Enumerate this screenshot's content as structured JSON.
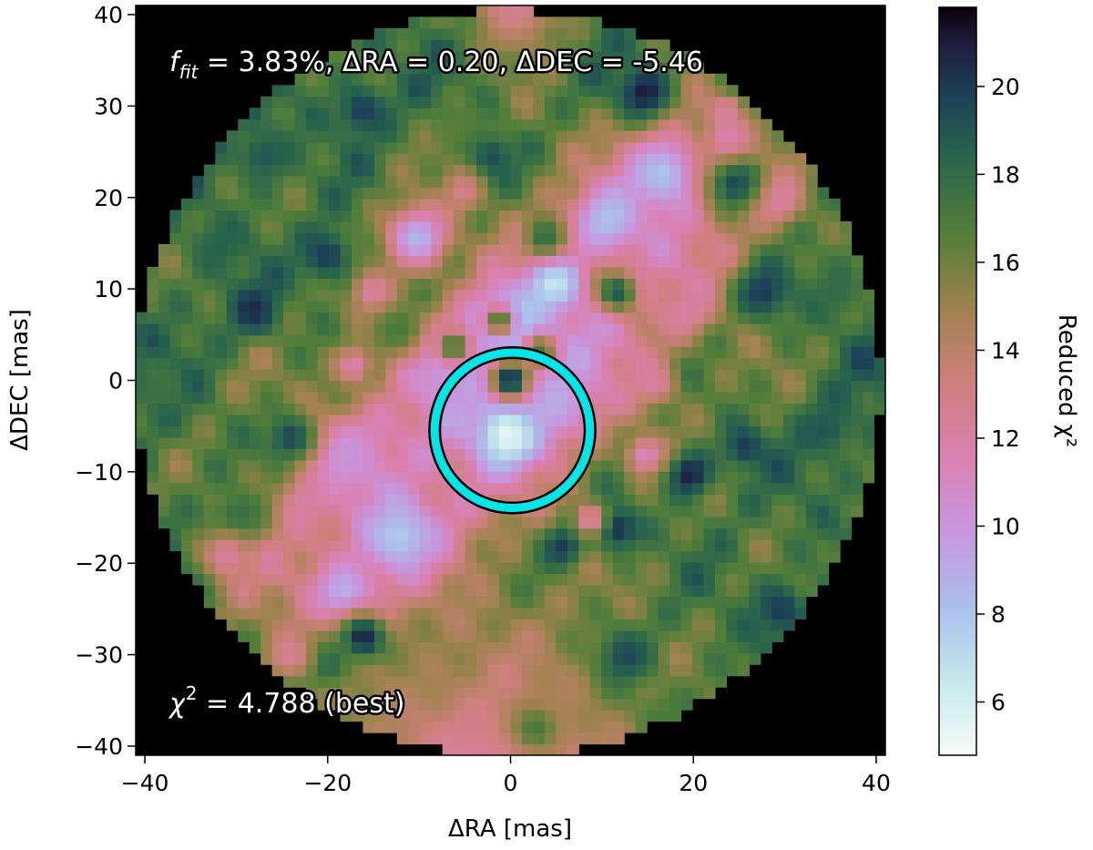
{
  "chart_data": {
    "type": "heatmap",
    "title": "",
    "xlabel": "ΔRA [mas]",
    "ylabel": "ΔDEC [mas]",
    "xlim": [
      -41,
      41
    ],
    "ylim": [
      -41,
      41
    ],
    "x_ticks": [
      -40,
      -20,
      0,
      20,
      40
    ],
    "x_tick_labels": [
      "−40",
      "−20",
      "0",
      "20",
      "40"
    ],
    "y_ticks": [
      -40,
      -30,
      -20,
      -10,
      0,
      10,
      20,
      30,
      40
    ],
    "y_tick_labels": [
      "−40",
      "−30",
      "−20",
      "−10",
      "0",
      "10",
      "20",
      "30",
      "40"
    ],
    "colormap": "cubehelix_r",
    "colorbar": {
      "label": "Reduced χ²",
      "range": [
        4.788,
        21.8
      ],
      "ticks": [
        6,
        8,
        10,
        12,
        14,
        16,
        18,
        20
      ],
      "tick_labels": [
        "6",
        "8",
        "10",
        "12",
        "14",
        "16",
        "18",
        "20"
      ]
    },
    "search_radius_mas": 41,
    "grid_step_mas": 1.25,
    "masked_color": "#000000",
    "best_fit": {
      "f_fit_percent": 3.83,
      "dRA": 0.2,
      "dDEC": -5.46,
      "chi2": 4.788,
      "marker_radius_mas": 8.5,
      "marker_color": "#00e5e8"
    },
    "annotations": {
      "fit_text_fpart": "f",
      "fit_text_sub": "fit",
      "fit_text_rest": " = 3.83%, ΔRA = 0.20, ΔDEC = -5.46",
      "chi_text_chi": "χ",
      "chi_text_sup": "2",
      "chi_text_rest": " = 4.788 (best)"
    },
    "features": [
      {
        "x": 0.2,
        "y": -5.5,
        "value": 4.8,
        "w": 2.5
      },
      {
        "x": -0.5,
        "y": 6.5,
        "value": 6.0,
        "w": 2.5
      },
      {
        "x": 5,
        "y": 11,
        "value": 6.5,
        "w": 2.0
      },
      {
        "x": -12,
        "y": -17,
        "value": 7.5,
        "w": 3.0
      },
      {
        "x": 11,
        "y": 18,
        "value": 8.0,
        "w": 2.5
      },
      {
        "x": 17,
        "y": 23,
        "value": 8.0,
        "w": 3.0
      },
      {
        "x": -10,
        "y": 16,
        "value": 8.5,
        "w": 2.5
      },
      {
        "x": -18,
        "y": -23,
        "value": 8.5,
        "w": 2.5
      },
      {
        "x": 5,
        "y": -2,
        "value": 9.0,
        "w": 3.0
      },
      {
        "x": -6,
        "y": 2,
        "value": 9.5,
        "w": 3.0
      },
      {
        "x": -18,
        "y": -8,
        "value": 10,
        "w": 3.0
      },
      {
        "x": -2,
        "y": -45,
        "value": 12,
        "w": 12
      },
      {
        "x": 1,
        "y": 42,
        "value": 12.5,
        "w": 4
      },
      {
        "x": 0.2,
        "y": 0.4,
        "value": 21,
        "w": 1.5
      },
      {
        "x": -1,
        "y": 6.8,
        "value": 18,
        "w": 1.2
      },
      {
        "x": 3.5,
        "y": 3.5,
        "value": 17.5,
        "w": 1.2
      },
      {
        "x": -6,
        "y": 4,
        "value": 18,
        "w": 1.2
      },
      {
        "x": -2,
        "y": 25,
        "value": 19.5,
        "w": 1.8
      },
      {
        "x": 4,
        "y": 16,
        "value": 18,
        "w": 1.6
      },
      {
        "x": 12,
        "y": 10,
        "value": 19,
        "w": 1.6
      },
      {
        "x": 15,
        "y": 32,
        "value": 21,
        "w": 2.0
      },
      {
        "x": -20,
        "y": 14,
        "value": 20,
        "w": 2.2
      },
      {
        "x": -28,
        "y": 8,
        "value": 20.5,
        "w": 2.0
      },
      {
        "x": -16,
        "y": 30,
        "value": 20,
        "w": 2.0
      },
      {
        "x": -27,
        "y": 25,
        "value": 19,
        "w": 2.2
      },
      {
        "x": 28,
        "y": 10,
        "value": 20,
        "w": 2.2
      },
      {
        "x": 25,
        "y": 22,
        "value": 19.5,
        "w": 2.2
      },
      {
        "x": 35,
        "y": -5,
        "value": 19,
        "w": 2.2
      },
      {
        "x": 26,
        "y": -7,
        "value": 20,
        "w": 1.8
      },
      {
        "x": 20,
        "y": -10,
        "value": 21,
        "w": 1.8
      },
      {
        "x": 12,
        "y": -16,
        "value": 20.5,
        "w": 1.8
      },
      {
        "x": 6,
        "y": -18,
        "value": 20,
        "w": 1.6
      },
      {
        "x": -16,
        "y": -28,
        "value": 21,
        "w": 1.8
      },
      {
        "x": 30,
        "y": -25,
        "value": 20,
        "w": 2.0
      },
      {
        "x": 13,
        "y": -30,
        "value": 19.5,
        "w": 2.0
      },
      {
        "x": -24,
        "y": -6,
        "value": 19.5,
        "w": 2.0
      },
      {
        "x": 26,
        "y": 33,
        "value": 18.5,
        "w": 2.0
      },
      {
        "x": -12,
        "y": 6,
        "value": 17,
        "w": 2.0
      },
      {
        "x": -20,
        "y": -31,
        "value": 18.5,
        "w": 2.0
      },
      {
        "x": -32,
        "y": 15,
        "value": 18.5,
        "w": 2.0
      },
      {
        "x": -30,
        "y": -15,
        "value": 18,
        "w": 2.0
      },
      {
        "x": 36,
        "y": 10,
        "value": 18,
        "w": 2.0
      },
      {
        "x": -38,
        "y": 0,
        "value": 17.5,
        "w": 2.0
      },
      {
        "x": -6,
        "y": 28,
        "value": 16.5,
        "w": 2.0
      },
      {
        "x": 3,
        "y": -38,
        "value": 17,
        "w": 2.0
      },
      {
        "x": 17,
        "y": -37,
        "value": 17,
        "w": 2.0
      },
      {
        "x": -5,
        "y": 21,
        "value": 13,
        "w": 1.6
      },
      {
        "x": -15,
        "y": 10,
        "value": 12,
        "w": 1.5
      },
      {
        "x": -17,
        "y": 2,
        "value": 11.5,
        "w": 1.4
      },
      {
        "x": 15,
        "y": -8,
        "value": 11,
        "w": 1.5
      },
      {
        "x": 24,
        "y": 27,
        "value": 11.5,
        "w": 1.6
      },
      {
        "x": 30,
        "y": 20,
        "value": 12,
        "w": 1.6
      },
      {
        "x": 20,
        "y": 8,
        "value": 12,
        "w": 1.6
      },
      {
        "x": 16,
        "y": 0,
        "value": 12,
        "w": 1.6
      },
      {
        "x": 9,
        "y": -15,
        "value": 11.5,
        "w": 1.2
      },
      {
        "x": -22,
        "y": -13,
        "value": 12,
        "w": 2.0
      },
      {
        "x": -31,
        "y": -19,
        "value": 12,
        "w": 1.8
      },
      {
        "x": -24,
        "y": -30,
        "value": 12.5,
        "w": 1.8
      },
      {
        "x": 24,
        "y": 30,
        "value": 12,
        "w": 1.4
      }
    ]
  }
}
